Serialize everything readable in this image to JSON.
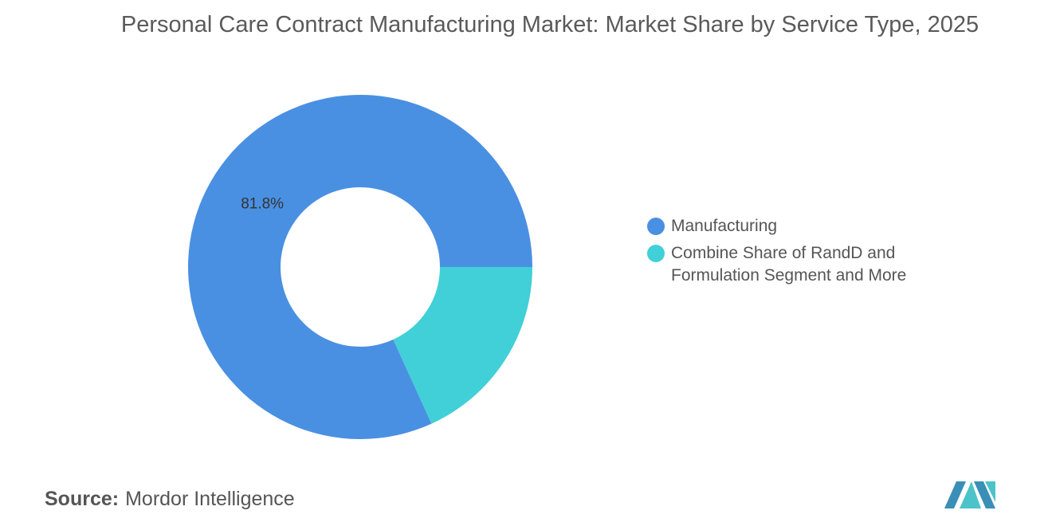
{
  "chart_data": {
    "type": "donut",
    "title": "Personal Care Contract Manufacturing Market: Market Share by Service Type, 2025",
    "categories": [
      "Manufacturing",
      "Combine Share of RandD and Formulation Segment and More"
    ],
    "values": [
      81.8,
      18.2
    ],
    "value_labels": [
      "81.8%",
      null
    ],
    "colors": [
      "#4a90e2",
      "#41d0d8"
    ],
    "legend": "right"
  },
  "source_label": "Source:",
  "source": "Mordor Intelligence"
}
